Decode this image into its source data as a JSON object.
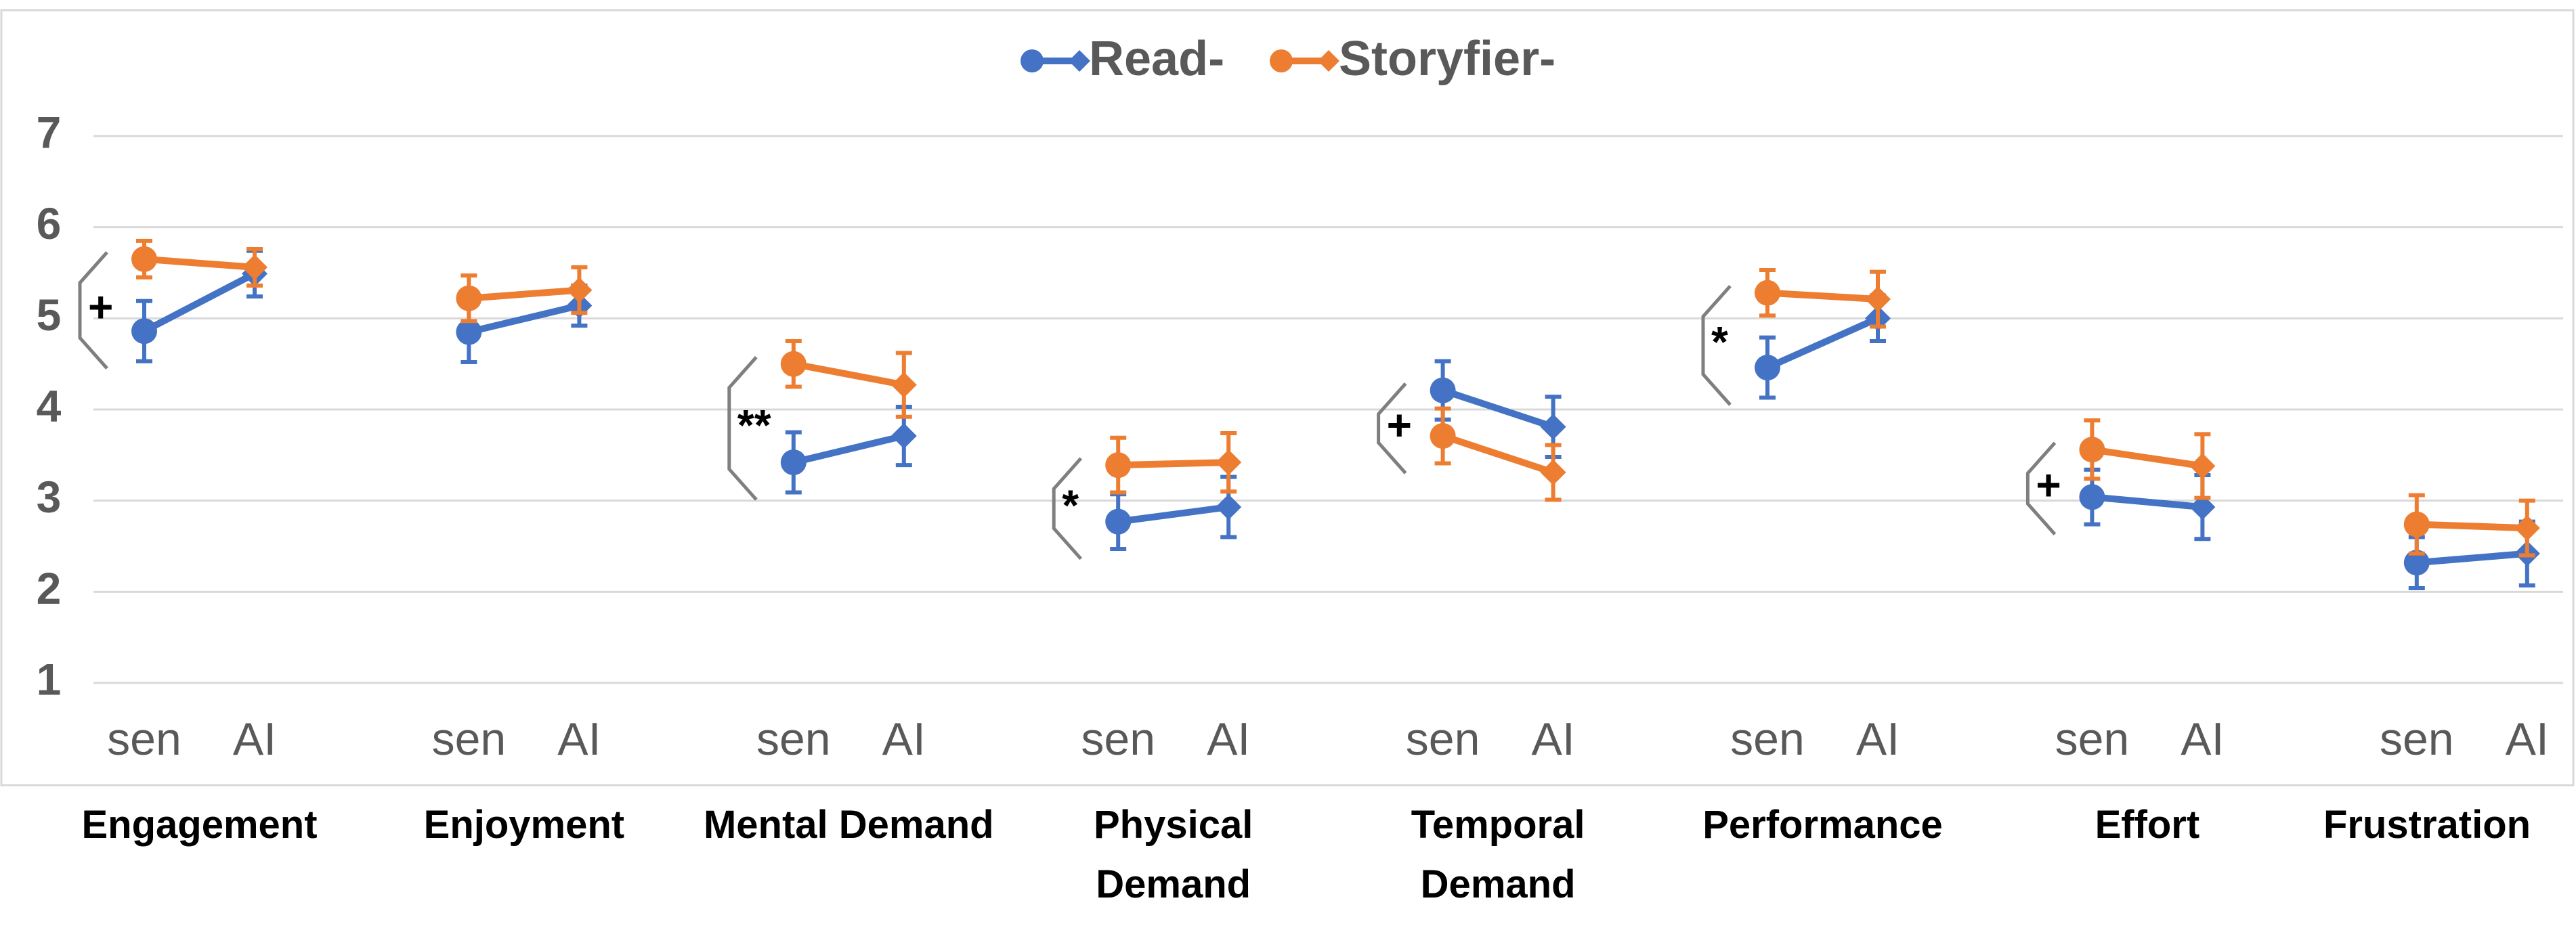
{
  "chart_data": {
    "type": "line",
    "groups": [
      "Engagement",
      "Enjoyment",
      "Mental Demand",
      "Physical Demand",
      "Temporal Demand",
      "Performance",
      "Effort",
      "Frustration"
    ],
    "x_labels": [
      "sen",
      "AI"
    ],
    "significance": [
      "+",
      null,
      "**",
      "*",
      "+",
      "*",
      "+",
      null
    ],
    "series": [
      {
        "name": "Read-",
        "color": "#4472c4",
        "values": [
          [
            4.86,
            5.49
          ],
          [
            4.85,
            5.14
          ],
          [
            3.42,
            3.71
          ],
          [
            2.77,
            2.93
          ],
          [
            4.21,
            3.81
          ],
          [
            4.46,
            5.0
          ],
          [
            3.04,
            2.93
          ],
          [
            2.32,
            2.42
          ]
        ],
        "errors": [
          [
            0.33,
            0.25
          ],
          [
            0.33,
            0.22
          ],
          [
            0.33,
            0.32
          ],
          [
            0.3,
            0.33
          ],
          [
            0.32,
            0.33
          ],
          [
            0.33,
            0.25
          ],
          [
            0.3,
            0.35
          ],
          [
            0.28,
            0.35
          ]
        ]
      },
      {
        "name": "Storyfier-",
        "color": "#ed7d31",
        "values": [
          [
            5.65,
            5.56
          ],
          [
            5.22,
            5.31
          ],
          [
            4.5,
            4.27
          ],
          [
            3.39,
            3.42
          ],
          [
            3.71,
            3.31
          ],
          [
            5.28,
            5.21
          ],
          [
            3.56,
            3.38
          ],
          [
            2.74,
            2.7
          ]
        ],
        "errors": [
          [
            0.2,
            0.2
          ],
          [
            0.25,
            0.25
          ],
          [
            0.25,
            0.35
          ],
          [
            0.3,
            0.32
          ],
          [
            0.3,
            0.3
          ],
          [
            0.25,
            0.3
          ],
          [
            0.32,
            0.35
          ],
          [
            0.32,
            0.3
          ]
        ]
      }
    ],
    "ylim": [
      1,
      7
    ],
    "yticks": [
      1,
      2,
      3,
      4,
      5,
      6,
      7
    ],
    "grid": true,
    "legend": "top"
  }
}
